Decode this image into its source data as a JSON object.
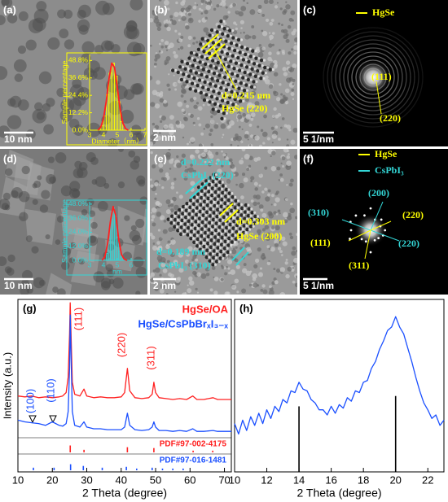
{
  "panels": [
    {
      "label": "(a)",
      "scale_bar": "10 nm"
    },
    {
      "label": "(b)",
      "scale_bar": "2 nm",
      "annotations": [
        {
          "text": "d=0.215 nm",
          "color": "#ffff00"
        },
        {
          "text": "HgSe (220)",
          "color": "#ffff00"
        }
      ]
    },
    {
      "label": "(c)",
      "scale_bar": "5 1/nm",
      "legend": [
        {
          "name": "HgSe",
          "color": "#ffff00"
        }
      ],
      "annotations": [
        {
          "text": "(111)",
          "color": "#ffff00"
        },
        {
          "text": "(220)",
          "color": "#ffff00"
        }
      ]
    },
    {
      "label": "(d)",
      "scale_bar": "10 nm"
    },
    {
      "label": "(e)",
      "scale_bar": "2 nm",
      "annotations": [
        {
          "text": "d=0.222 nm",
          "color": "#33d6d6"
        },
        {
          "text": "CsPbI₃ (220)",
          "color": "#33d6d6"
        },
        {
          "text": "d=0.303 nm",
          "color": "#ffff00"
        },
        {
          "text": "HgSe (200)",
          "color": "#ffff00"
        },
        {
          "text": "d=0.189 nm",
          "color": "#33d6d6"
        },
        {
          "text": "CsPbI₃ (310)",
          "color": "#33d6d6"
        }
      ]
    },
    {
      "label": "(f)",
      "scale_bar": "5 1/nm",
      "legend": [
        {
          "name": "HgSe",
          "color": "#ffff00"
        },
        {
          "name": "CsPbI₃",
          "color": "#33d6d6"
        }
      ],
      "annotations": [
        {
          "text": "(200)",
          "color": "#33d6d6"
        },
        {
          "text": "(310)",
          "color": "#33d6d6"
        },
        {
          "text": "(220)",
          "color": "#ffff00"
        },
        {
          "text": "(111)",
          "color": "#ffff00"
        },
        {
          "text": "(220)",
          "color": "#33d6d6"
        },
        {
          "text": "(311)",
          "color": "#ffff00"
        }
      ]
    }
  ],
  "chart_data": [
    {
      "type": "histogram",
      "color": "#ffff00",
      "xlabel": "Diameter（nm）",
      "ylabel": "Sample percentage",
      "bins": [
        3.8,
        4.0,
        4.2,
        4.4,
        4.6,
        4.8,
        5.0,
        5.2,
        5.4
      ],
      "values": [
        3,
        10,
        25,
        40,
        47,
        38,
        20,
        6
      ],
      "fit": {
        "color": "#ff2020",
        "x": [
          3.6,
          3.8,
          4.0,
          4.2,
          4.4,
          4.6,
          4.8,
          5.0,
          5.2,
          5.4,
          5.6,
          5.8
        ],
        "values": [
          0,
          2,
          8,
          20,
          36,
          47,
          44,
          30,
          15,
          5,
          1,
          0
        ]
      },
      "xlim": [
        3,
        7
      ],
      "xticks": [
        3,
        4,
        5,
        6,
        7
      ],
      "ylim": [
        0,
        53
      ],
      "yticks": [
        {
          "value": 0,
          "label": "0.0%"
        },
        {
          "value": 12.2,
          "label": "12.2%"
        },
        {
          "value": 24.4,
          "label": "24.4%"
        },
        {
          "value": 36.6,
          "label": "36.6%"
        },
        {
          "value": 48.8,
          "label": "48.8%"
        }
      ]
    },
    {
      "type": "histogram",
      "color": "#33d6d6",
      "xlabel": "nm",
      "ylabel": "Sample percentage",
      "bins": [
        4.2,
        4.35,
        4.5,
        4.65,
        4.8,
        4.95,
        5.1,
        5.25,
        5.4
      ],
      "values": [
        6,
        18,
        35,
        45,
        38,
        20,
        8,
        3
      ],
      "fit": {
        "color": "#ff2020",
        "x": [
          3.9,
          4.1,
          4.3,
          4.5,
          4.7,
          4.9,
          5.1,
          5.3,
          5.5,
          5.7
        ],
        "values": [
          0,
          3,
          14,
          33,
          46,
          38,
          18,
          5,
          1,
          0
        ]
      },
      "xlim": [
        3,
        7
      ],
      "xticks": [
        3,
        4,
        5,
        6
      ],
      "ylim": [
        0,
        50
      ],
      "yticks": [
        {
          "value": 0,
          "label": "0.0%"
        },
        {
          "value": 12,
          "label": "12.0%"
        },
        {
          "value": 24,
          "label": "24.0%"
        },
        {
          "value": 36,
          "label": "36.0%"
        },
        {
          "value": 48,
          "label": "48.0%"
        }
      ]
    },
    {
      "type": "line",
      "label": "(g)",
      "xlabel": "2 Theta (degree)",
      "ylabel": "Intensity (a.u.)",
      "xlim": [
        10,
        72
      ],
      "xticks": [
        10,
        20,
        30,
        40,
        50,
        60,
        70
      ],
      "ylim": [
        0,
        100
      ],
      "x": [
        10,
        12,
        14,
        16,
        18,
        20,
        22,
        23,
        24,
        24.6,
        25.0,
        25.2,
        25.4,
        25.8,
        26.5,
        28,
        29.2,
        30,
        32,
        34,
        36,
        38,
        40,
        41,
        41.8,
        42.5,
        44,
        46,
        48,
        49,
        49.5,
        50,
        51,
        53,
        55,
        57,
        59,
        60.8,
        62,
        64,
        66.7,
        68,
        70,
        72
      ],
      "series": [
        {
          "name": "HgSe/OA",
          "color": "#ff2020",
          "values": [
            44,
            43.5,
            44,
            43,
            43.5,
            43,
            43.5,
            44,
            46,
            55,
            80,
            98,
            82,
            52,
            45,
            44,
            48,
            44,
            43,
            43.5,
            43,
            43,
            43.5,
            46,
            60,
            47,
            43,
            42.5,
            43,
            45,
            52,
            46,
            43,
            42.5,
            42,
            42.5,
            42,
            44,
            42,
            42,
            43,
            42,
            42,
            42
          ]
        },
        {
          "name": "HgSe/CsPbBrₓI₃₋ₓ",
          "color": "#1a4fff",
          "values": [
            30,
            29,
            28.5,
            28,
            27,
            29,
            27,
            26.5,
            28,
            35,
            60,
            91,
            70,
            35,
            27,
            26,
            29,
            26,
            25,
            25,
            24.5,
            24.5,
            24.5,
            26,
            34,
            27,
            24.5,
            24,
            24.5,
            26,
            29,
            26,
            24,
            24,
            23.5,
            24,
            23.5,
            25,
            23.5,
            23.5,
            24,
            23.5,
            23.5,
            23.5
          ]
        }
      ],
      "references": [
        {
          "name": "PDF#97-002-4175",
          "color": "#ff2020",
          "x": [
            25.2,
            29.2,
            41.8,
            49.5,
            60.9,
            66.6
          ],
          "values": [
            4,
            1.5,
            3,
            2.5,
            1,
            1
          ]
        },
        {
          "name": "PDF#97-016-1481",
          "color": "#1a4fff",
          "x": [
            14.5,
            20.5,
            25.3,
            29,
            34.5,
            41.5,
            44.5,
            49,
            52,
            55,
            58
          ],
          "values": [
            1.5,
            1.5,
            3.5,
            2.5,
            1.5,
            2,
            1,
            1.5,
            1,
            1,
            1
          ]
        }
      ],
      "annotations": [
        {
          "text": "(111)",
          "color": "#ff2020"
        },
        {
          "text": "(220)",
          "color": "#ff2020"
        },
        {
          "text": "(311)",
          "color": "#ff2020"
        },
        {
          "text": "(100)",
          "color": "#1a4fff"
        },
        {
          "text": "(110)",
          "color": "#1a4fff"
        }
      ]
    },
    {
      "type": "line",
      "label": "(h)",
      "xlabel": "2 Theta (degree)",
      "xlim": [
        10,
        23
      ],
      "xticks": [
        10,
        12,
        14,
        16,
        18,
        20,
        22
      ],
      "ylim": [
        0,
        100
      ],
      "x": [
        10,
        10.25,
        10.5,
        10.75,
        11,
        11.25,
        11.5,
        11.75,
        12,
        12.25,
        12.5,
        12.75,
        13,
        13.25,
        13.5,
        13.75,
        14,
        14.25,
        14.5,
        14.75,
        15,
        15.25,
        15.5,
        15.75,
        16,
        16.25,
        16.5,
        16.75,
        17,
        17.25,
        17.5,
        17.75,
        18,
        18.25,
        18.5,
        18.75,
        19,
        19.25,
        19.5,
        19.75,
        20,
        20.25,
        20.5,
        20.75,
        21,
        21.25,
        21.5,
        21.75,
        22,
        22.25,
        22.5,
        22.75,
        23
      ],
      "series": [
        {
          "color": "#1a4fff",
          "values": [
            28,
            22,
            30,
            24,
            32,
            27,
            34,
            28,
            36,
            31,
            38,
            35,
            42,
            40,
            47,
            46,
            52,
            48,
            47,
            42,
            40,
            36,
            36,
            33,
            38,
            34,
            39,
            37,
            43,
            41,
            47,
            46,
            52,
            53,
            60,
            64,
            71,
            76,
            82,
            84,
            90,
            84,
            80,
            72,
            64,
            55,
            47,
            40,
            36,
            31,
            33,
            27,
            30
          ]
        }
      ],
      "references": [
        {
          "color": "#000000",
          "x": [
            14,
            20
          ],
          "values": [
            38,
            44
          ]
        }
      ]
    }
  ]
}
